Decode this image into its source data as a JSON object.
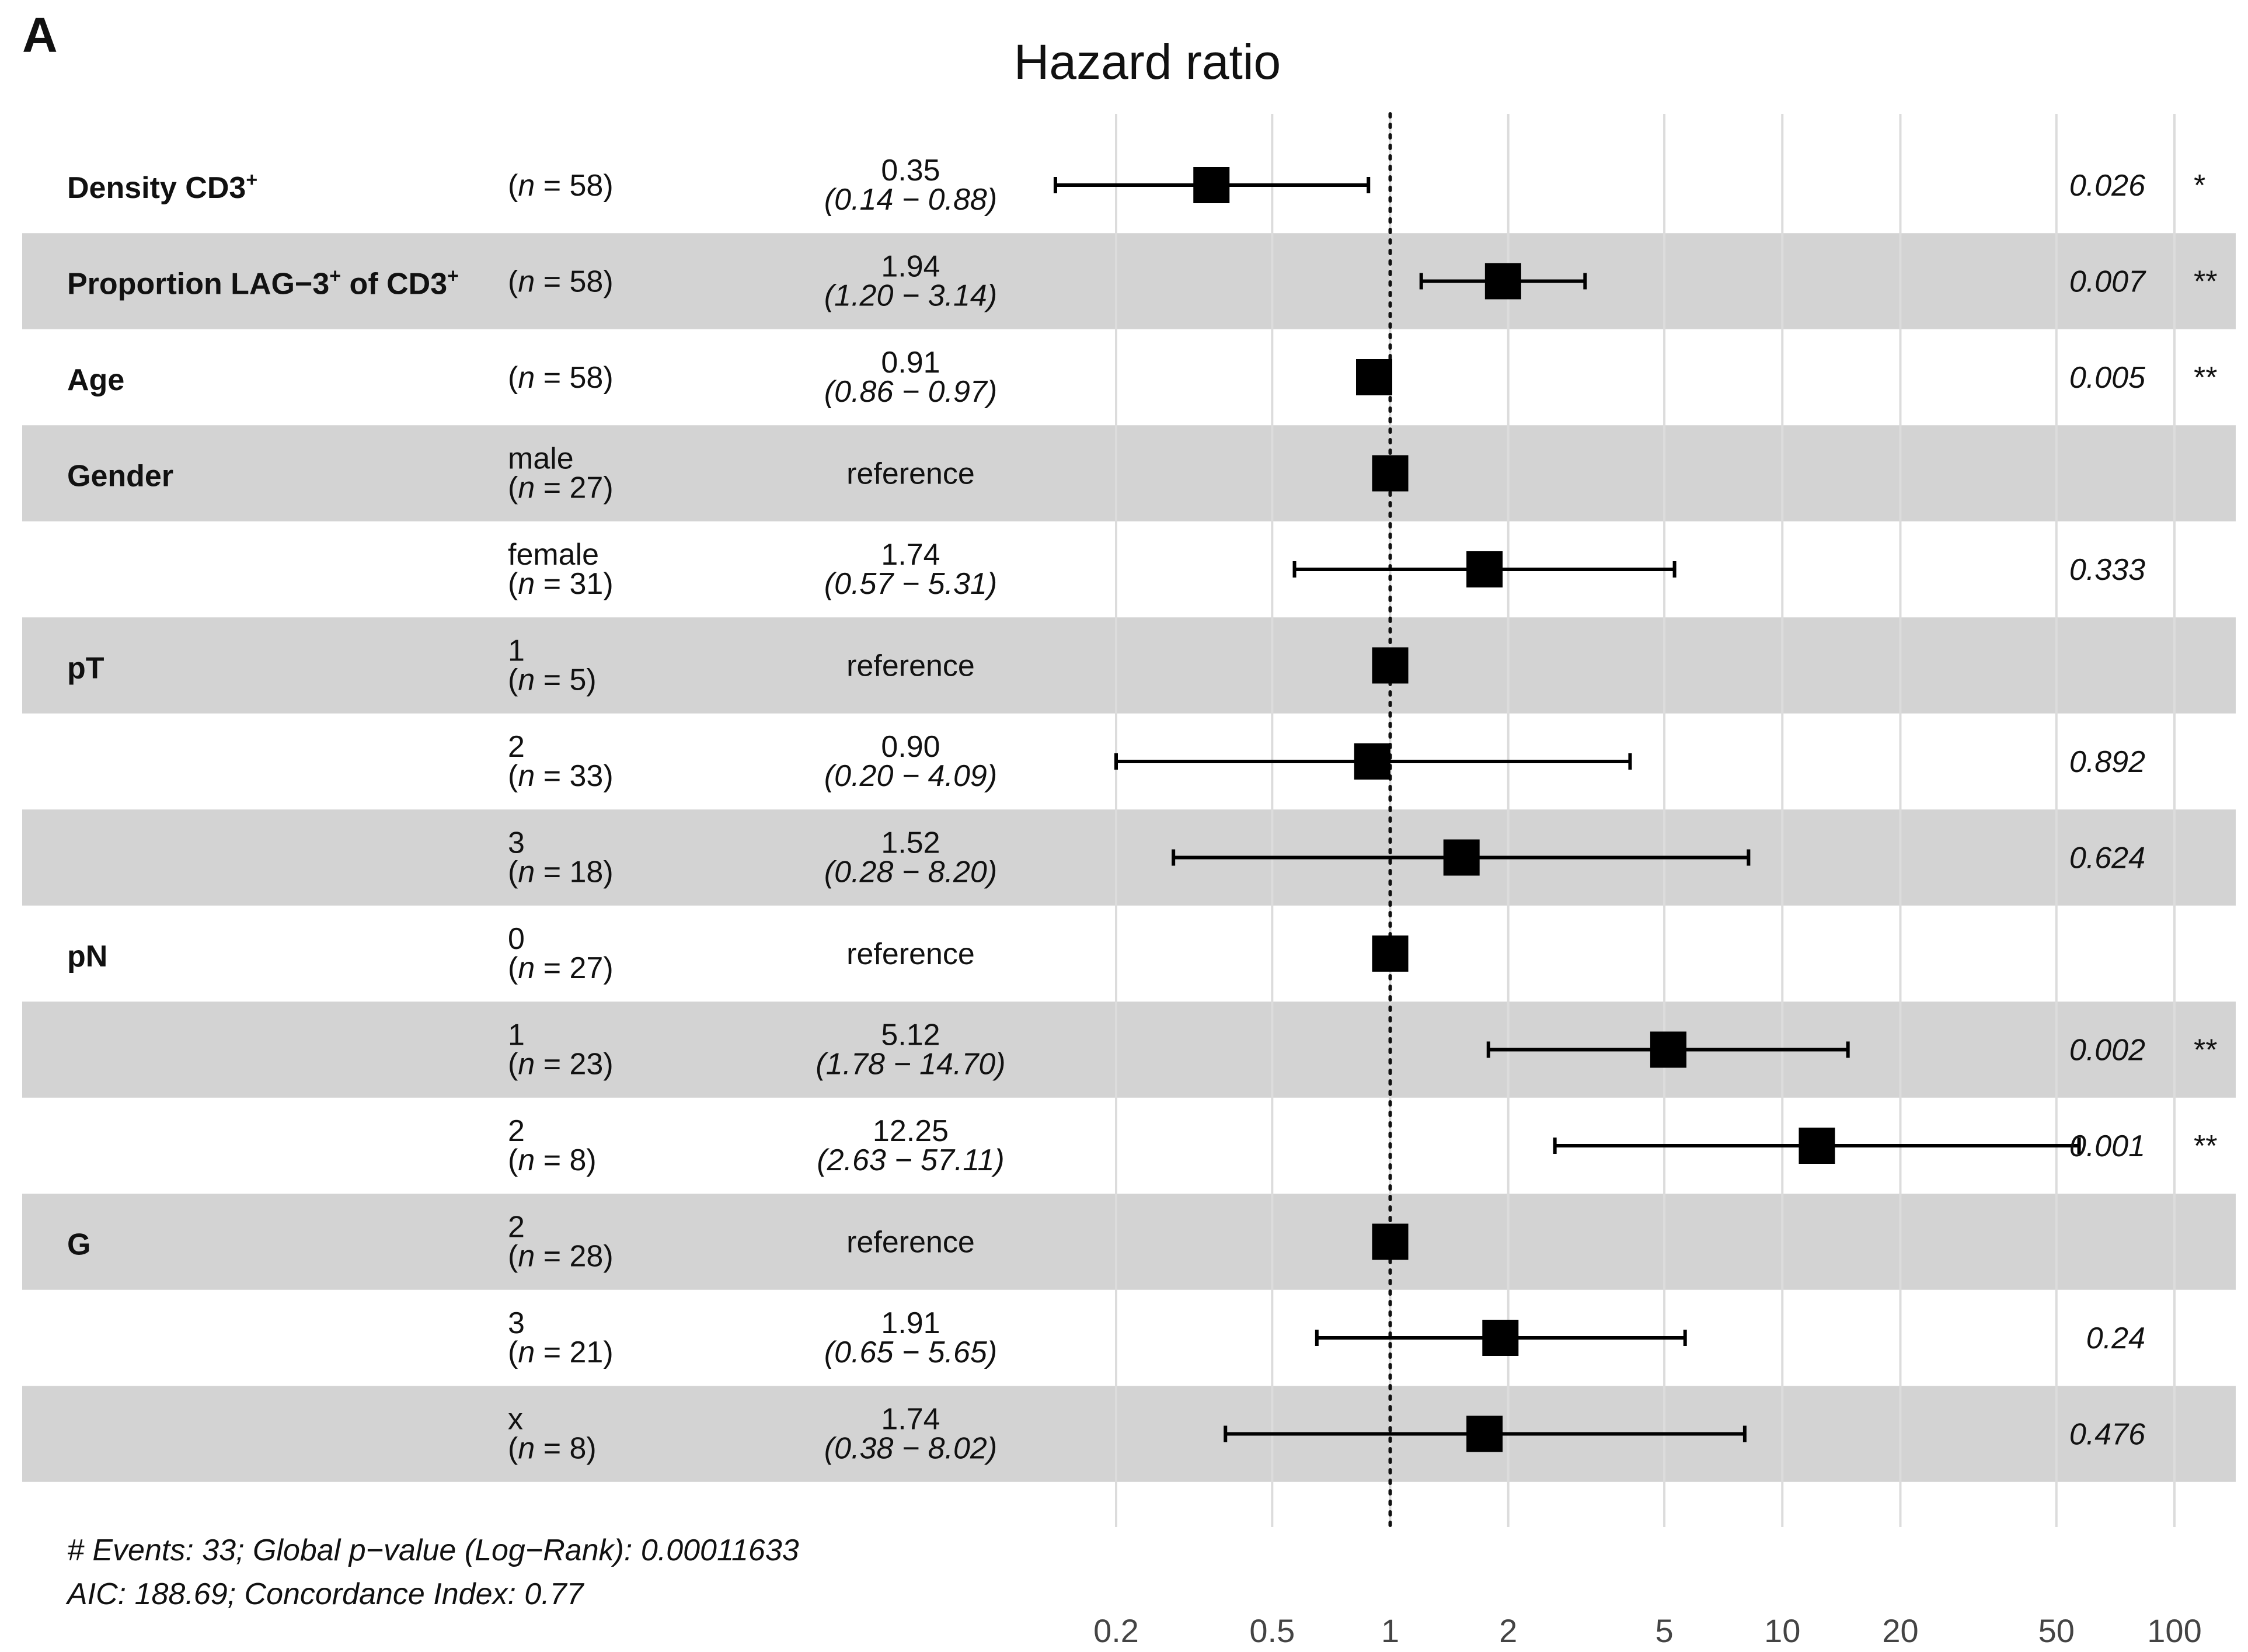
{
  "panel_label": "A",
  "chart_data": {
    "type": "forest",
    "title": "Hazard ratio",
    "x_scale": "log",
    "xlim": [
      0.2,
      100
    ],
    "x_ticks": [
      0.2,
      0.5,
      1,
      2,
      5,
      10,
      20,
      50,
      100
    ],
    "x_tick_labels": [
      "0.2",
      "0.5",
      "1",
      "2",
      "5",
      "10",
      "20",
      "50",
      "100"
    ],
    "reference_line": 1,
    "rows": [
      {
        "variable": "Density CD3",
        "sup": "+",
        "level": "",
        "n": "58",
        "hr": 0.35,
        "ci_low": 0.14,
        "ci_high": 0.88,
        "est_text": "0.35",
        "ci_text": "(0.14 −  0.88)",
        "p": "0.026",
        "sig": "*"
      },
      {
        "variable": "Proportion LAG−3",
        "sup": "+",
        "variable_suffix": " of CD3",
        "sup2": "+",
        "level": "",
        "n": "58",
        "hr": 1.94,
        "ci_low": 1.2,
        "ci_high": 3.14,
        "est_text": "1.94",
        "ci_text": "(1.20 −  3.14)",
        "p": "0.007",
        "sig": "**"
      },
      {
        "variable": "Age",
        "level": "",
        "n": "58",
        "hr": 0.91,
        "ci_low": 0.86,
        "ci_high": 0.97,
        "est_text": "0.91",
        "ci_text": "(0.86 −  0.97)",
        "p": "0.005",
        "sig": "**"
      },
      {
        "variable": "Gender",
        "level": "male",
        "n": "27",
        "hr": 1,
        "reference": true,
        "est_text": "reference",
        "p": "",
        "sig": ""
      },
      {
        "variable": "",
        "level": "female",
        "n": "31",
        "hr": 1.74,
        "ci_low": 0.57,
        "ci_high": 5.31,
        "est_text": "1.74",
        "ci_text": "(0.57 −  5.31)",
        "p": "0.333",
        "sig": ""
      },
      {
        "variable": "pT",
        "level": "1",
        "n": "5",
        "hr": 1,
        "reference": true,
        "est_text": "reference",
        "p": "",
        "sig": ""
      },
      {
        "variable": "",
        "level": "2",
        "n": "33",
        "hr": 0.9,
        "ci_low": 0.2,
        "ci_high": 4.09,
        "est_text": "0.90",
        "ci_text": "(0.20 −  4.09)",
        "p": "0.892",
        "sig": ""
      },
      {
        "variable": "",
        "level": "3",
        "n": "18",
        "hr": 1.52,
        "ci_low": 0.28,
        "ci_high": 8.2,
        "est_text": "1.52",
        "ci_text": "(0.28 −  8.20)",
        "p": "0.624",
        "sig": ""
      },
      {
        "variable": "pN",
        "level": "0",
        "n": "27",
        "hr": 1,
        "reference": true,
        "est_text": "reference",
        "p": "",
        "sig": ""
      },
      {
        "variable": "",
        "level": "1",
        "n": "23",
        "hr": 5.12,
        "ci_low": 1.78,
        "ci_high": 14.7,
        "est_text": "5.12",
        "ci_text": "(1.78 − 14.70)",
        "p": "0.002",
        "sig": "**"
      },
      {
        "variable": "",
        "level": "2",
        "n": "8",
        "hr": 12.25,
        "ci_low": 2.63,
        "ci_high": 57.11,
        "est_text": "12.25",
        "ci_text": "(2.63 − 57.11)",
        "p": "0.001",
        "sig": "**"
      },
      {
        "variable": "G",
        "level": "2",
        "n": "28",
        "hr": 1,
        "reference": true,
        "est_text": "reference",
        "p": "",
        "sig": ""
      },
      {
        "variable": "",
        "level": "3",
        "n": "21",
        "hr": 1.91,
        "ci_low": 0.65,
        "ci_high": 5.65,
        "est_text": "1.91",
        "ci_text": "(0.65 −  5.65)",
        "p": "0.24",
        "sig": ""
      },
      {
        "variable": "",
        "level": "x",
        "n": "8",
        "hr": 1.74,
        "ci_low": 0.38,
        "ci_high": 8.02,
        "est_text": "1.74",
        "ci_text": "(0.38 −  8.02)",
        "p": "0.476",
        "sig": ""
      }
    ],
    "footer": [
      "# Events: 33; Global p−value (Log−Rank): 0.00011633",
      "AIC: 188.69; Concordance Index: 0.77"
    ],
    "colors": {
      "stripe": "#d3d3d3",
      "marker": "#000000",
      "grid": "#dcdcdc"
    }
  }
}
